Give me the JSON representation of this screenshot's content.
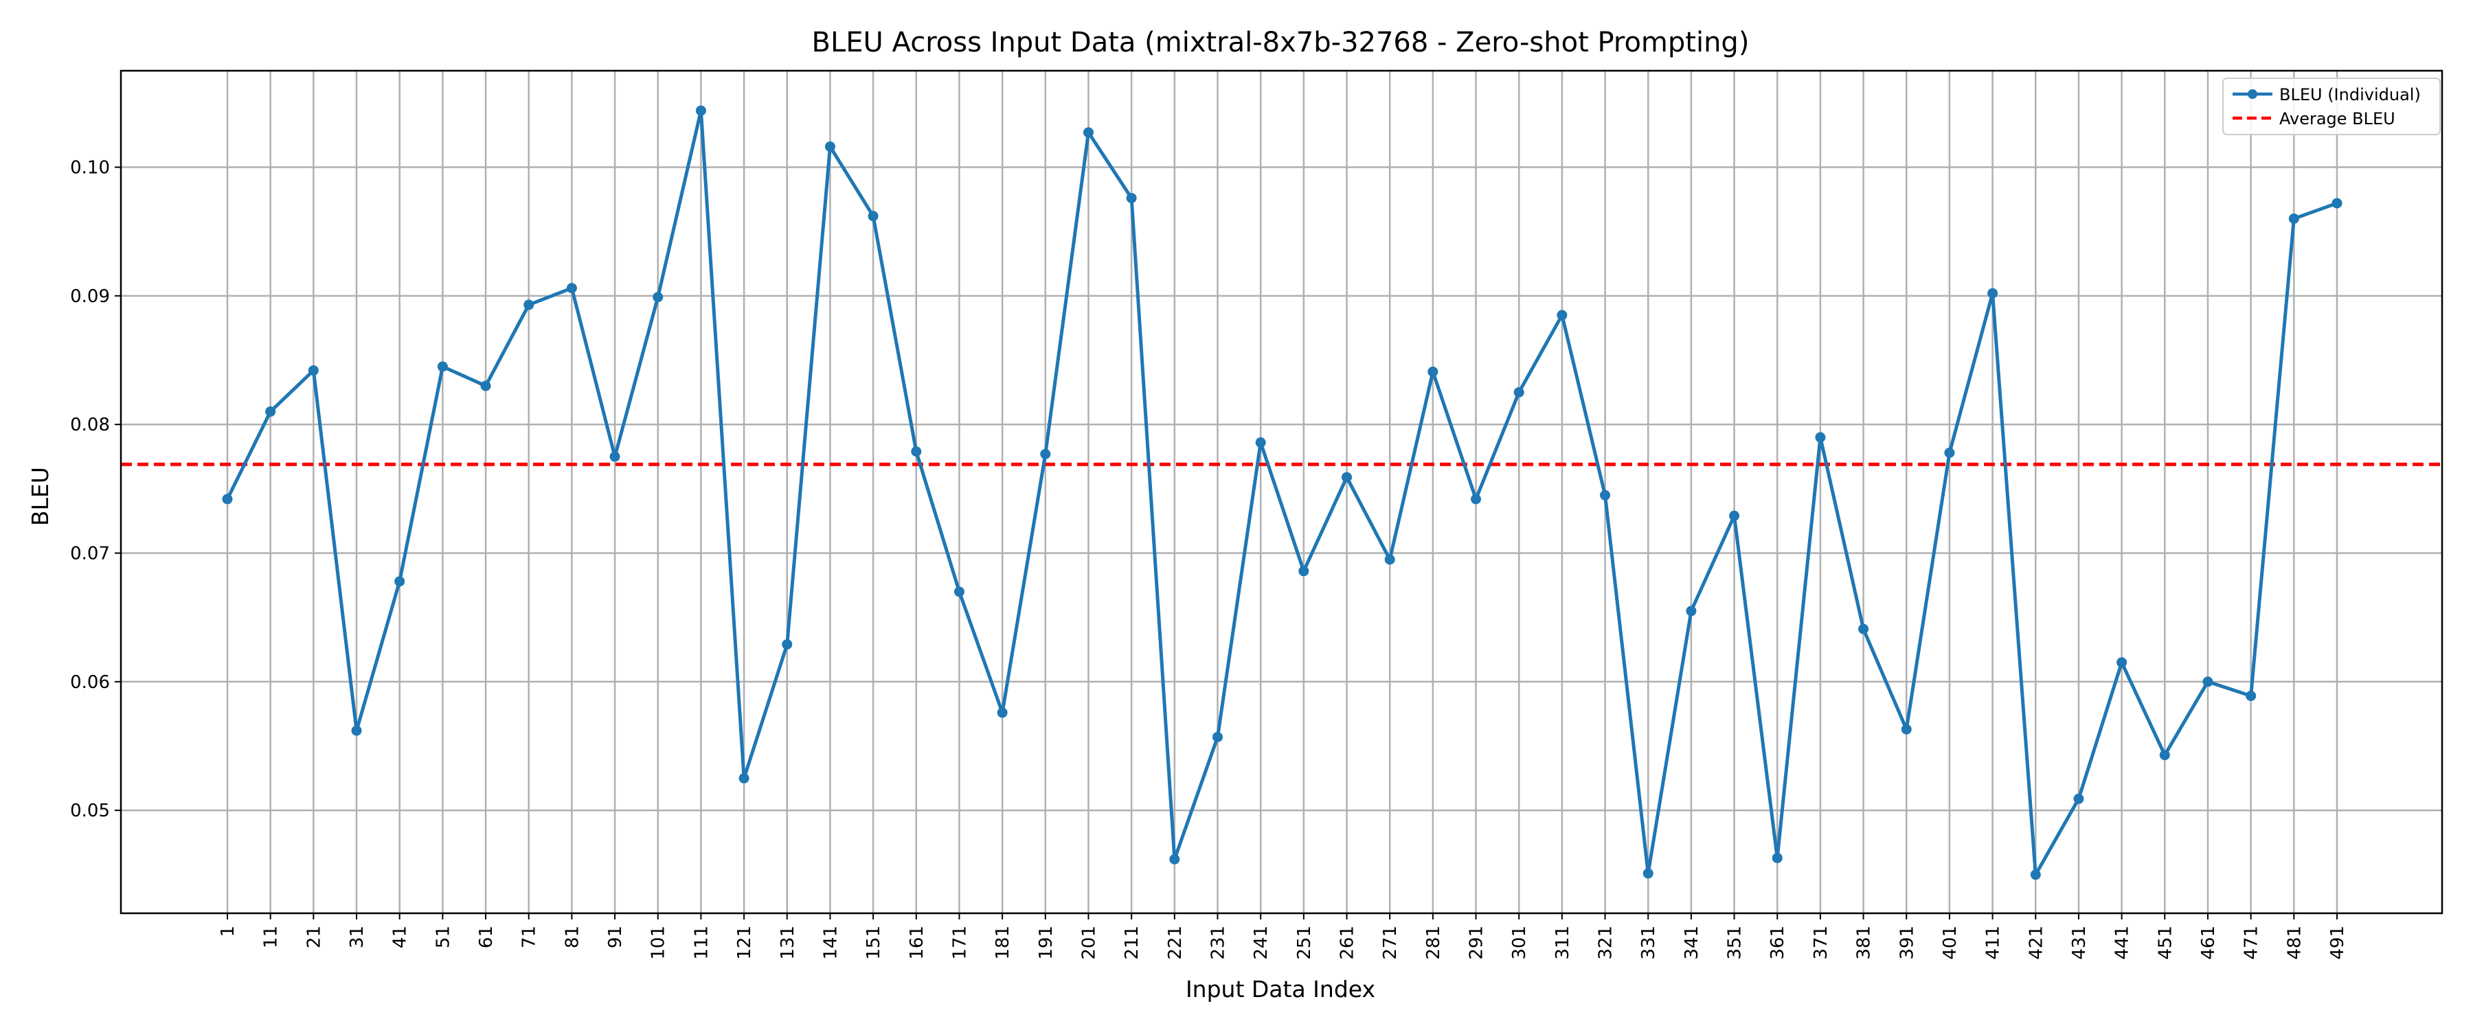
{
  "chart_data": {
    "type": "line",
    "title": "BLEU Across Input Data (mixtral-8x7b-32768 - Zero-shot Prompting)",
    "xlabel": "Input Data Index",
    "ylabel": "BLEU",
    "x": [
      1,
      11,
      21,
      31,
      41,
      51,
      61,
      71,
      81,
      91,
      101,
      111,
      121,
      131,
      141,
      151,
      161,
      171,
      181,
      191,
      201,
      211,
      221,
      231,
      241,
      251,
      261,
      271,
      281,
      291,
      301,
      311,
      321,
      331,
      341,
      351,
      361,
      371,
      381,
      391,
      401,
      411,
      421,
      431,
      441,
      451,
      461,
      471,
      481,
      491
    ],
    "x_tick_labels": [
      "1",
      "11",
      "21",
      "31",
      "41",
      "51",
      "61",
      "71",
      "81",
      "91",
      "101",
      "111",
      "121",
      "131",
      "141",
      "151",
      "161",
      "171",
      "181",
      "191",
      "201",
      "211",
      "221",
      "231",
      "241",
      "251",
      "261",
      "271",
      "281",
      "291",
      "301",
      "311",
      "321",
      "331",
      "341",
      "351",
      "361",
      "371",
      "381",
      "391",
      "401",
      "411",
      "421",
      "431",
      "441",
      "451",
      "461",
      "471",
      "481",
      "491"
    ],
    "series": [
      {
        "name": "BLEU (Individual)",
        "color": "#1f77b4",
        "values": [
          0.0742,
          0.081,
          0.0842,
          0.0562,
          0.0678,
          0.0845,
          0.083,
          0.0893,
          0.0906,
          0.0775,
          0.0899,
          0.1044,
          0.0525,
          0.0629,
          0.1016,
          0.0962,
          0.0779,
          0.067,
          0.0576,
          0.0777,
          0.1027,
          0.0976,
          0.0462,
          0.0557,
          0.0786,
          0.0686,
          0.0759,
          0.0695,
          0.0841,
          0.0742,
          0.0825,
          0.0885,
          0.0745,
          0.0451,
          0.0655,
          0.0729,
          0.0463,
          0.079,
          0.0641,
          0.0563,
          0.0778,
          0.0902,
          0.045,
          0.0509,
          0.0615,
          0.0543,
          0.06,
          0.0589,
          0.096,
          0.0972
        ]
      },
      {
        "name": "Average BLEU",
        "color": "#ff0000",
        "style": "dashed",
        "constant": 0.0769
      }
    ],
    "ylim": [
      0.042,
      0.1075
    ],
    "yticks": [
      0.05,
      0.06,
      0.07,
      0.08,
      0.09,
      0.1
    ],
    "ytick_labels": [
      "0.05",
      "0.06",
      "0.07",
      "0.08",
      "0.09",
      "0.10"
    ],
    "grid": true,
    "legend_position": "top-right"
  }
}
